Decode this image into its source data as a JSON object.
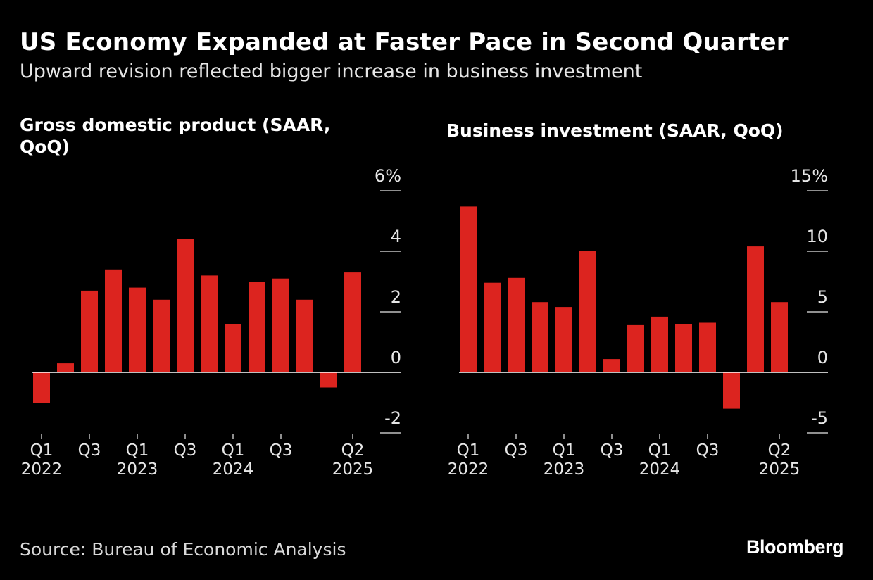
{
  "title": "US Economy Expanded at Faster Pace in Second Quarter",
  "subtitle": "Upward revision reflected bigger increase in business investment",
  "source": "Source: Bureau of Economic Analysis",
  "logo": "Bloomberg",
  "colors": {
    "bar": "#dc241f",
    "background": "#000000",
    "text": "#ffffff"
  },
  "chart_data": [
    {
      "type": "bar",
      "title": "Gross domestic product (SAAR, QoQ)",
      "categories": [
        "Q1 2022",
        "Q2 2022",
        "Q3 2022",
        "Q4 2022",
        "Q1 2023",
        "Q2 2023",
        "Q3 2023",
        "Q4 2023",
        "Q1 2024",
        "Q2 2024",
        "Q3 2024",
        "Q4 2024",
        "Q1 2025",
        "Q2 2025"
      ],
      "values": [
        -1.0,
        0.3,
        2.7,
        3.4,
        2.8,
        2.4,
        4.4,
        3.2,
        1.6,
        3.0,
        3.1,
        2.4,
        -0.5,
        3.3
      ],
      "ylim": [
        -2,
        6
      ],
      "yticks": [
        -2,
        0,
        2,
        4,
        6
      ],
      "ytick_labels": [
        "-2",
        "0",
        "2",
        "4",
        "6%"
      ],
      "xticks": [
        {
          "index": 0,
          "quarter": "Q1",
          "year": "2022"
        },
        {
          "index": 2,
          "quarter": "Q3",
          "year": ""
        },
        {
          "index": 4,
          "quarter": "Q1",
          "year": "2023"
        },
        {
          "index": 6,
          "quarter": "Q3",
          "year": ""
        },
        {
          "index": 8,
          "quarter": "Q1",
          "year": "2024"
        },
        {
          "index": 10,
          "quarter": "Q3",
          "year": ""
        },
        {
          "index": 13,
          "quarter": "Q2",
          "year": "2025"
        }
      ],
      "xlabel": "",
      "ylabel": ""
    },
    {
      "type": "bar",
      "title": "Business investment (SAAR, QoQ)",
      "categories": [
        "Q1 2022",
        "Q2 2022",
        "Q3 2022",
        "Q4 2022",
        "Q1 2023",
        "Q2 2023",
        "Q3 2023",
        "Q4 2023",
        "Q1 2024",
        "Q2 2024",
        "Q3 2024",
        "Q4 2024",
        "Q1 2025",
        "Q2 2025"
      ],
      "values": [
        13.7,
        7.4,
        7.8,
        5.8,
        5.4,
        10.0,
        1.1,
        3.9,
        4.6,
        4.0,
        4.1,
        -3.0,
        10.4,
        5.8
      ],
      "ylim": [
        -5,
        15
      ],
      "yticks": [
        -5,
        0,
        5,
        10,
        15
      ],
      "ytick_labels": [
        "-5",
        "0",
        "5",
        "10",
        "15%"
      ],
      "xticks": [
        {
          "index": 0,
          "quarter": "Q1",
          "year": "2022"
        },
        {
          "index": 2,
          "quarter": "Q3",
          "year": ""
        },
        {
          "index": 4,
          "quarter": "Q1",
          "year": "2023"
        },
        {
          "index": 6,
          "quarter": "Q3",
          "year": ""
        },
        {
          "index": 8,
          "quarter": "Q1",
          "year": "2024"
        },
        {
          "index": 10,
          "quarter": "Q3",
          "year": ""
        },
        {
          "index": 13,
          "quarter": "Q2",
          "year": "2025"
        }
      ],
      "xlabel": "",
      "ylabel": ""
    }
  ]
}
